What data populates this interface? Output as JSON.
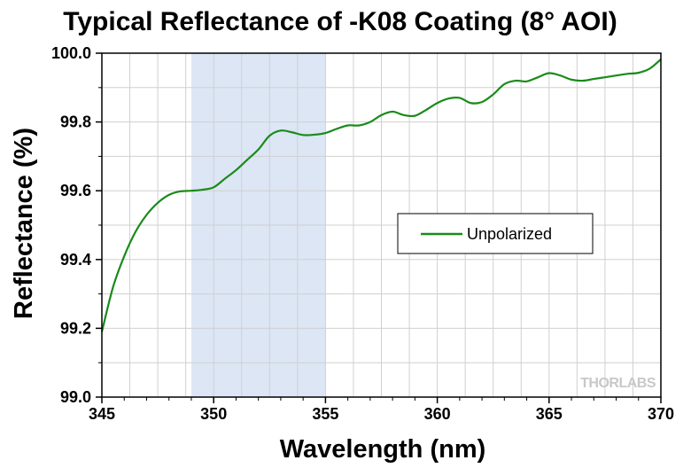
{
  "chart_data": {
    "type": "line",
    "title": "Typical Reflectance of -K08 Coating (8° AOI)",
    "xlabel": "Wavelength (nm)",
    "ylabel": "Reflectance (%)",
    "xlim": [
      345,
      370
    ],
    "ylim": [
      99.0,
      100.0
    ],
    "x_ticks": [
      "345",
      "350",
      "355",
      "360",
      "365",
      "370"
    ],
    "y_ticks": [
      "99.0",
      "99.2",
      "99.4",
      "99.6",
      "99.8",
      "100.0"
    ],
    "grid": true,
    "legend_position": "center-right",
    "highlight_band": [
      349,
      355
    ],
    "colors": {
      "series": "#1a8a1a",
      "band": "#dce6f5",
      "grid": "#d0d0d0"
    },
    "watermark": "THORLABS",
    "series": [
      {
        "name": "Unpolarized",
        "x": [
          345,
          345.5,
          346,
          346.5,
          347,
          347.5,
          348,
          348.5,
          349,
          349.5,
          350,
          350.5,
          351,
          351.5,
          352,
          352.5,
          353,
          353.5,
          354,
          354.5,
          355,
          355.5,
          356,
          356.5,
          357,
          357.5,
          358,
          358.5,
          359,
          359.5,
          360,
          360.5,
          361,
          361.5,
          362,
          362.5,
          363,
          363.5,
          364,
          364.5,
          365,
          365.5,
          366,
          366.5,
          367,
          367.5,
          368,
          368.5,
          369,
          369.5,
          370
        ],
        "y": [
          99.19,
          99.32,
          99.41,
          99.48,
          99.53,
          99.565,
          99.588,
          99.598,
          99.6,
          99.603,
          99.61,
          99.635,
          99.66,
          99.69,
          99.72,
          99.76,
          99.775,
          99.77,
          99.762,
          99.763,
          99.768,
          99.78,
          99.79,
          99.79,
          99.8,
          99.82,
          99.83,
          99.82,
          99.818,
          99.835,
          99.855,
          99.868,
          99.87,
          99.855,
          99.858,
          99.88,
          99.91,
          99.92,
          99.918,
          99.93,
          99.942,
          99.935,
          99.923,
          99.92,
          99.925,
          99.93,
          99.935,
          99.94,
          99.943,
          99.955,
          99.982
        ]
      }
    ]
  }
}
